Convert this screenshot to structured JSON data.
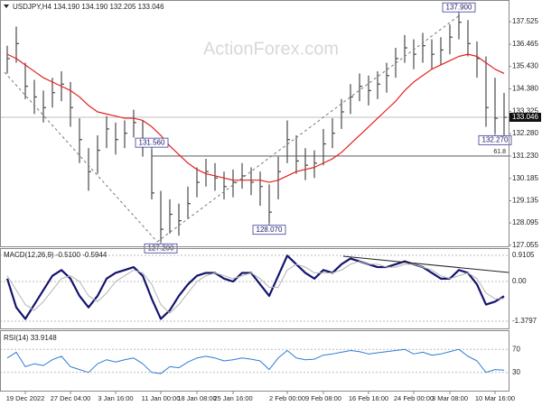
{
  "chart_data": {
    "type": "ohlc",
    "title": "USDJPY,H4  134.190 134.190 132.205 133.046",
    "watermark": "ActionForex.com",
    "bar_color": "#4a4a4a",
    "categories": [
      null,
      null,
      "19 Dec 2022",
      null,
      null,
      null,
      null,
      "27 Dec 04:00",
      null,
      null,
      null,
      null,
      "3 Jan 16:00",
      null,
      null,
      null,
      null,
      "11 Jan 00:00",
      null,
      null,
      null,
      "18 Jan 08:00",
      null,
      null,
      null,
      "25 Jan 16:00",
      null,
      null,
      null,
      null,
      null,
      "2 Feb 00:00",
      null,
      null,
      null,
      "9 Feb 08:00",
      null,
      null,
      null,
      null,
      "16 Feb 16:00",
      null,
      null,
      null,
      null,
      "24 Feb 00:00",
      null,
      null,
      null,
      "3 Mar 08:00",
      null,
      null,
      null,
      null,
      "10 Mar 16:00",
      null
    ],
    "high": [
      136.4,
      137.3,
      135.6,
      134.8,
      134.3,
      134.9,
      135.2,
      134.7,
      133.0,
      131.6,
      132.2,
      133.1,
      132.8,
      132.9,
      133.4,
      132.9,
      131.56,
      129.6,
      129.2,
      129.0,
      129.8,
      130.7,
      131.1,
      130.9,
      130.5,
      130.6,
      130.9,
      130.7,
      130.5,
      129.9,
      131.2,
      132.9,
      132.2,
      131.6,
      131.5,
      132.5,
      133.0,
      133.9,
      134.6,
      135.1,
      135.0,
      135.2,
      135.6,
      136.3,
      136.9,
      136.7,
      137.0,
      136.7,
      136.8,
      137.4,
      137.9,
      137.6,
      136.6,
      135.9,
      134.9,
      134.19
    ],
    "low": [
      135.1,
      135.6,
      133.9,
      133.2,
      132.8,
      133.5,
      133.8,
      132.6,
      130.9,
      129.6,
      130.4,
      131.6,
      131.3,
      131.6,
      132.1,
      131.2,
      129.2,
      127.2,
      127.6,
      127.5,
      128.3,
      129.3,
      129.8,
      129.6,
      129.2,
      129.3,
      129.7,
      129.4,
      128.9,
      128.07,
      129.2,
      130.9,
      130.4,
      130.1,
      130.2,
      130.8,
      131.6,
      132.5,
      133.2,
      133.8,
      133.6,
      133.9,
      134.2,
      134.9,
      135.6,
      135.3,
      135.6,
      135.3,
      135.5,
      136.0,
      136.7,
      135.9,
      134.9,
      132.6,
      132.27,
      132.205
    ],
    "close": [
      135.8,
      136.5,
      134.5,
      134.0,
      133.5,
      134.2,
      134.6,
      133.5,
      132.0,
      130.5,
      131.5,
      132.5,
      132.0,
      132.3,
      132.8,
      132.0,
      129.5,
      127.8,
      128.5,
      128.2,
      129.0,
      130.0,
      130.5,
      130.2,
      129.8,
      130.0,
      130.3,
      130.0,
      129.8,
      128.6,
      130.5,
      132.0,
      131.0,
      130.8,
      130.9,
      131.8,
      132.3,
      133.3,
      134.0,
      134.5,
      134.3,
      134.6,
      135.0,
      135.8,
      136.3,
      136.0,
      136.4,
      136.0,
      136.2,
      136.8,
      137.5,
      136.5,
      135.8,
      133.5,
      133.0,
      133.046
    ],
    "series": [
      {
        "color": "#e3211c",
        "values": [
          136.0,
          135.8,
          135.5,
          135.2,
          134.9,
          134.7,
          134.5,
          134.3,
          134.0,
          133.6,
          133.3,
          133.2,
          133.1,
          133.0,
          133.0,
          132.9,
          132.6,
          132.2,
          131.7,
          131.3,
          130.9,
          130.6,
          130.4,
          130.3,
          130.2,
          130.1,
          130.1,
          130.1,
          130.1,
          130.0,
          130.1,
          130.3,
          130.5,
          130.6,
          130.7,
          130.9,
          131.1,
          131.4,
          131.8,
          132.2,
          132.6,
          133.0,
          133.4,
          133.8,
          134.3,
          134.7,
          135.0,
          135.3,
          135.5,
          135.7,
          135.9,
          136.0,
          135.9,
          135.6,
          135.3,
          135.1
        ]
      }
    ],
    "ylim": [
      127.0,
      138.5
    ],
    "yticks": [
      137.525,
      136.465,
      {
        "value": 135.43,
        "label": "135.430"
      },
      {
        "value": 134.38,
        "label": "134.380"
      },
      133.325,
      {
        "value": 132.28,
        "label": "132.280"
      },
      {
        "value": 131.23,
        "label": "131.230"
      },
      130.185,
      129.135,
      128.095,
      127.055
    ],
    "annotations": [
      {
        "value": 137.9,
        "label": "137.900"
      },
      {
        "value": 131.56,
        "label": "131.560"
      },
      {
        "value": 128.07,
        "label": "128.070"
      },
      {
        "value": 127.2,
        "label": "127.200"
      },
      {
        "value": 132.27,
        "label": "132.270"
      }
    ],
    "last_price": {
      "value": 133.046,
      "label": "133.046"
    },
    "fib_level": {
      "value": 131.23,
      "label": "61.8"
    },
    "indicators": [
      {
        "type": "line",
        "title": "MACD(12,26,9) -0.5100 -0.5944",
        "series": [
          {
            "color": "#14146e",
            "width": 2.2,
            "values": [
              0.1,
              -0.9,
              -1.3,
              -0.8,
              -0.3,
              0.2,
              0.4,
              0.1,
              -0.5,
              -0.9,
              -0.5,
              0.1,
              0.3,
              0.4,
              0.5,
              0.2,
              -0.6,
              -1.3,
              -1.0,
              -0.5,
              -0.1,
              0.2,
              0.3,
              0.3,
              0.1,
              0.0,
              0.3,
              0.3,
              -0.1,
              -0.5,
              0.2,
              0.9,
              0.6,
              0.3,
              0.1,
              0.4,
              0.3,
              0.6,
              0.8,
              0.7,
              0.6,
              0.5,
              0.5,
              0.6,
              0.7,
              0.6,
              0.5,
              0.3,
              0.1,
              0.1,
              0.4,
              0.3,
              -0.1,
              -0.8,
              -0.7,
              -0.51
            ]
          },
          {
            "color": "#b4b4b4",
            "width": 1,
            "values": [
              0.2,
              -0.3,
              -0.8,
              -1.0,
              -0.7,
              -0.3,
              0.1,
              0.2,
              0.0,
              -0.5,
              -0.7,
              -0.4,
              0.0,
              0.2,
              0.4,
              0.3,
              -0.1,
              -0.8,
              -1.1,
              -0.8,
              -0.4,
              0.0,
              0.2,
              0.3,
              0.2,
              0.1,
              0.2,
              0.3,
              0.1,
              -0.2,
              -0.2,
              0.4,
              0.6,
              0.5,
              0.3,
              0.3,
              0.3,
              0.4,
              0.6,
              0.7,
              0.6,
              0.6,
              0.5,
              0.5,
              0.6,
              0.6,
              0.5,
              0.4,
              0.2,
              0.1,
              0.2,
              0.3,
              0.1,
              -0.4,
              -0.6,
              -0.5944
            ]
          }
        ],
        "ylim": [
          -1.63,
          1.13
        ],
        "yticks": [
          0.9105,
          {
            "value": 0,
            "label": "0.00"
          },
          -1.3797
        ]
      },
      {
        "type": "line",
        "title": "RSI(14) 33.9148",
        "series": [
          {
            "color": "#2f7bd6",
            "width": 1,
            "values": [
              55,
              65,
              40,
              45,
              42,
              52,
              58,
              40,
              35,
              30,
              45,
              52,
              48,
              52,
              55,
              45,
              30,
              28,
              40,
              38,
              48,
              55,
              58,
              55,
              50,
              52,
              55,
              53,
              50,
              35,
              55,
              68,
              55,
              52,
              53,
              60,
              62,
              65,
              68,
              66,
              62,
              64,
              66,
              68,
              70,
              62,
              65,
              60,
              62,
              66,
              70,
              58,
              50,
              30,
              35,
              33.9148
            ]
          }
        ],
        "ylim": [
          0,
          100
        ],
        "yticks": [
          70,
          30
        ]
      }
    ]
  }
}
